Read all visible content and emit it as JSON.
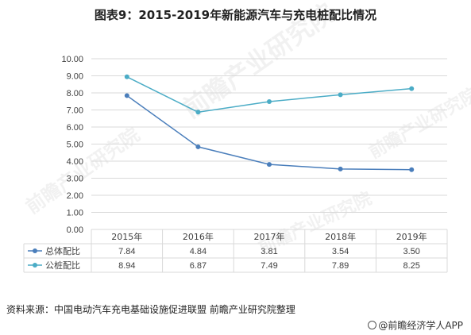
{
  "title": "图表9：2015-2019年新能源汽车与充电桩配比情况",
  "source": "资料来源：中国电动汽车充电基础设施促进联盟 前瞻产业研究院整理",
  "brand": "@前瞻经济学人APP",
  "watermark": "前瞻产业研究院",
  "colors": {
    "series0": "#4A7EBB",
    "series1": "#4BACC6",
    "grid": "#D9D9D9",
    "text": "#404040"
  },
  "chart_data": {
    "type": "line",
    "categories": [
      "2015年",
      "2016年",
      "2017年",
      "2018年",
      "2019年"
    ],
    "series": [
      {
        "name": "总体配比",
        "values": [
          "7.84",
          "4.84",
          "3.81",
          "3.54",
          "3.50"
        ]
      },
      {
        "name": "公桩配比",
        "values": [
          "8.94",
          "6.87",
          "7.49",
          "7.89",
          "8.25"
        ]
      }
    ],
    "yticks": [
      "0.00",
      "1.00",
      "2.00",
      "3.00",
      "4.00",
      "5.00",
      "6.00",
      "7.00",
      "8.00",
      "9.00",
      "10.00"
    ],
    "ylim": [
      0,
      10
    ],
    "grid": true,
    "legend": "data-table"
  }
}
